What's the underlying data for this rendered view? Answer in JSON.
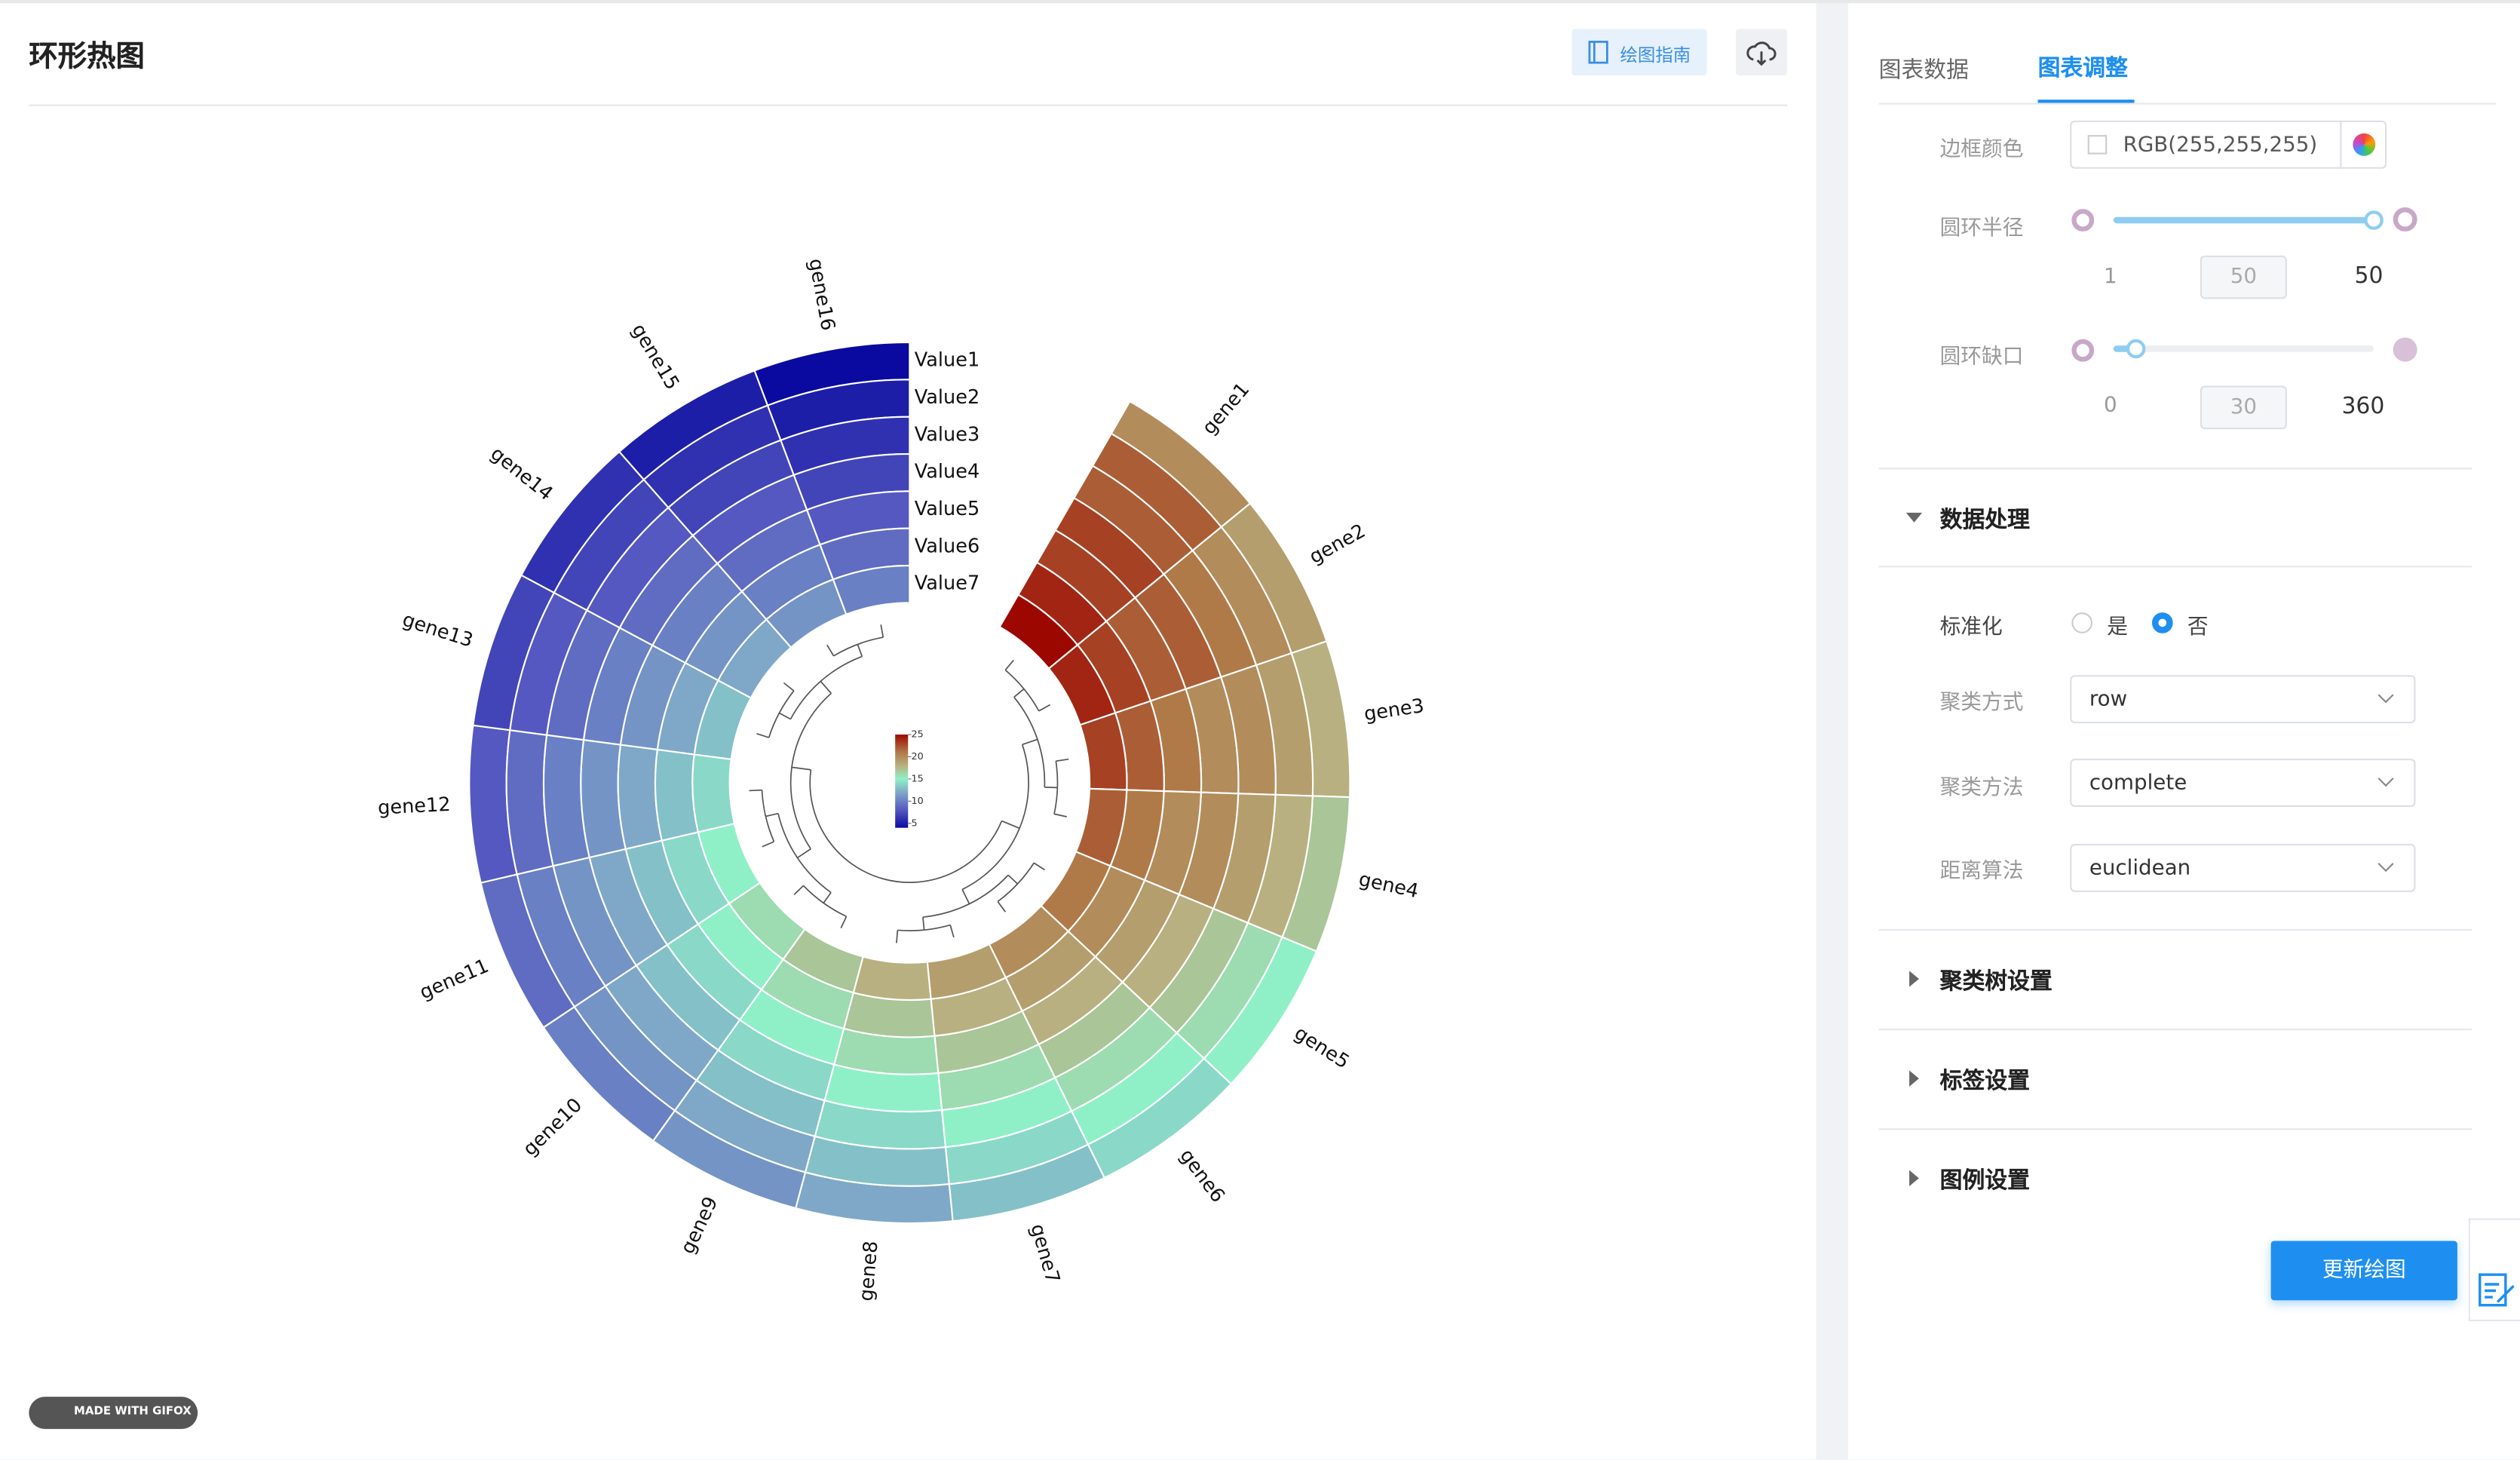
{
  "header": {
    "title": "环形热图",
    "guide_button": "绘图指南"
  },
  "watermark": "MADE WITH GIFOX",
  "tabs": [
    "图表数据",
    "图表调整"
  ],
  "active_tab": 1,
  "settings": {
    "border_color": {
      "label": "边框颜色",
      "value": "RGB(255,255,255)"
    },
    "ring_radius": {
      "label": "圆环半径",
      "min": 1,
      "value": 50,
      "max": 50
    },
    "ring_gap": {
      "label": "圆环缺口",
      "min": 0,
      "value": 30,
      "max": 360
    },
    "data_processing": {
      "title": "数据处理",
      "standardize": {
        "label": "标准化",
        "options": [
          "是",
          "否"
        ],
        "selected": 1
      },
      "cluster_mode": {
        "label": "聚类方式",
        "value": "row"
      },
      "cluster_method": {
        "label": "聚类方法",
        "value": "complete"
      },
      "distance": {
        "label": "距离算法",
        "value": "euclidean"
      }
    },
    "collapsed_sections": [
      "聚类树设置",
      "标签设置",
      "图例设置"
    ],
    "update_button": "更新绘图"
  },
  "chart_data": {
    "type": "heatmap",
    "layout": "circular",
    "categories": [
      "gene1",
      "gene2",
      "gene3",
      "gene4",
      "gene5",
      "gene6",
      "gene7",
      "gene8",
      "gene9",
      "gene10",
      "gene11",
      "gene12",
      "gene13",
      "gene14",
      "gene15",
      "gene16"
    ],
    "series": [
      {
        "name": "Value1",
        "values": [
          20,
          19,
          18,
          17,
          15,
          14,
          13,
          12,
          11,
          10,
          9,
          8,
          7,
          6,
          5,
          4
        ]
      },
      {
        "name": "Value2",
        "values": [
          22,
          20,
          19,
          18,
          16,
          15,
          14,
          13,
          12,
          11,
          10,
          9,
          8,
          7,
          6,
          5
        ]
      },
      {
        "name": "Value3",
        "values": [
          22,
          21,
          20,
          19,
          17,
          16,
          15,
          14,
          13,
          12,
          11,
          10,
          9,
          8,
          7,
          6
        ]
      },
      {
        "name": "Value4",
        "values": [
          23,
          22,
          20,
          20,
          18,
          17,
          16,
          15,
          14,
          13,
          12,
          11,
          10,
          9,
          8,
          7
        ]
      },
      {
        "name": "Value5",
        "values": [
          23,
          22,
          21,
          20,
          19,
          18,
          17,
          16,
          15,
          14,
          13,
          12,
          11,
          10,
          9,
          8
        ]
      },
      {
        "name": "Value6",
        "values": [
          24,
          23,
          22,
          21,
          20,
          19,
          18,
          17,
          16,
          15,
          14,
          13,
          12,
          11,
          10,
          9
        ]
      },
      {
        "name": "Value7",
        "values": [
          25,
          24,
          23,
          22,
          21,
          20,
          19,
          18,
          17,
          16,
          15,
          14,
          13,
          12,
          11,
          10
        ]
      }
    ],
    "colorscale": [
      [
        4,
        "#0a0aa0"
      ],
      [
        8,
        "#5558c0"
      ],
      [
        12,
        "#7fa8c8"
      ],
      [
        15,
        "#8ff0c8"
      ],
      [
        18,
        "#b8b080"
      ],
      [
        21,
        "#b07a48"
      ],
      [
        25,
        "#9c0800"
      ]
    ],
    "clim": [
      4,
      25
    ],
    "legend_ticks": [
      5,
      10,
      15,
      20,
      25
    ]
  }
}
